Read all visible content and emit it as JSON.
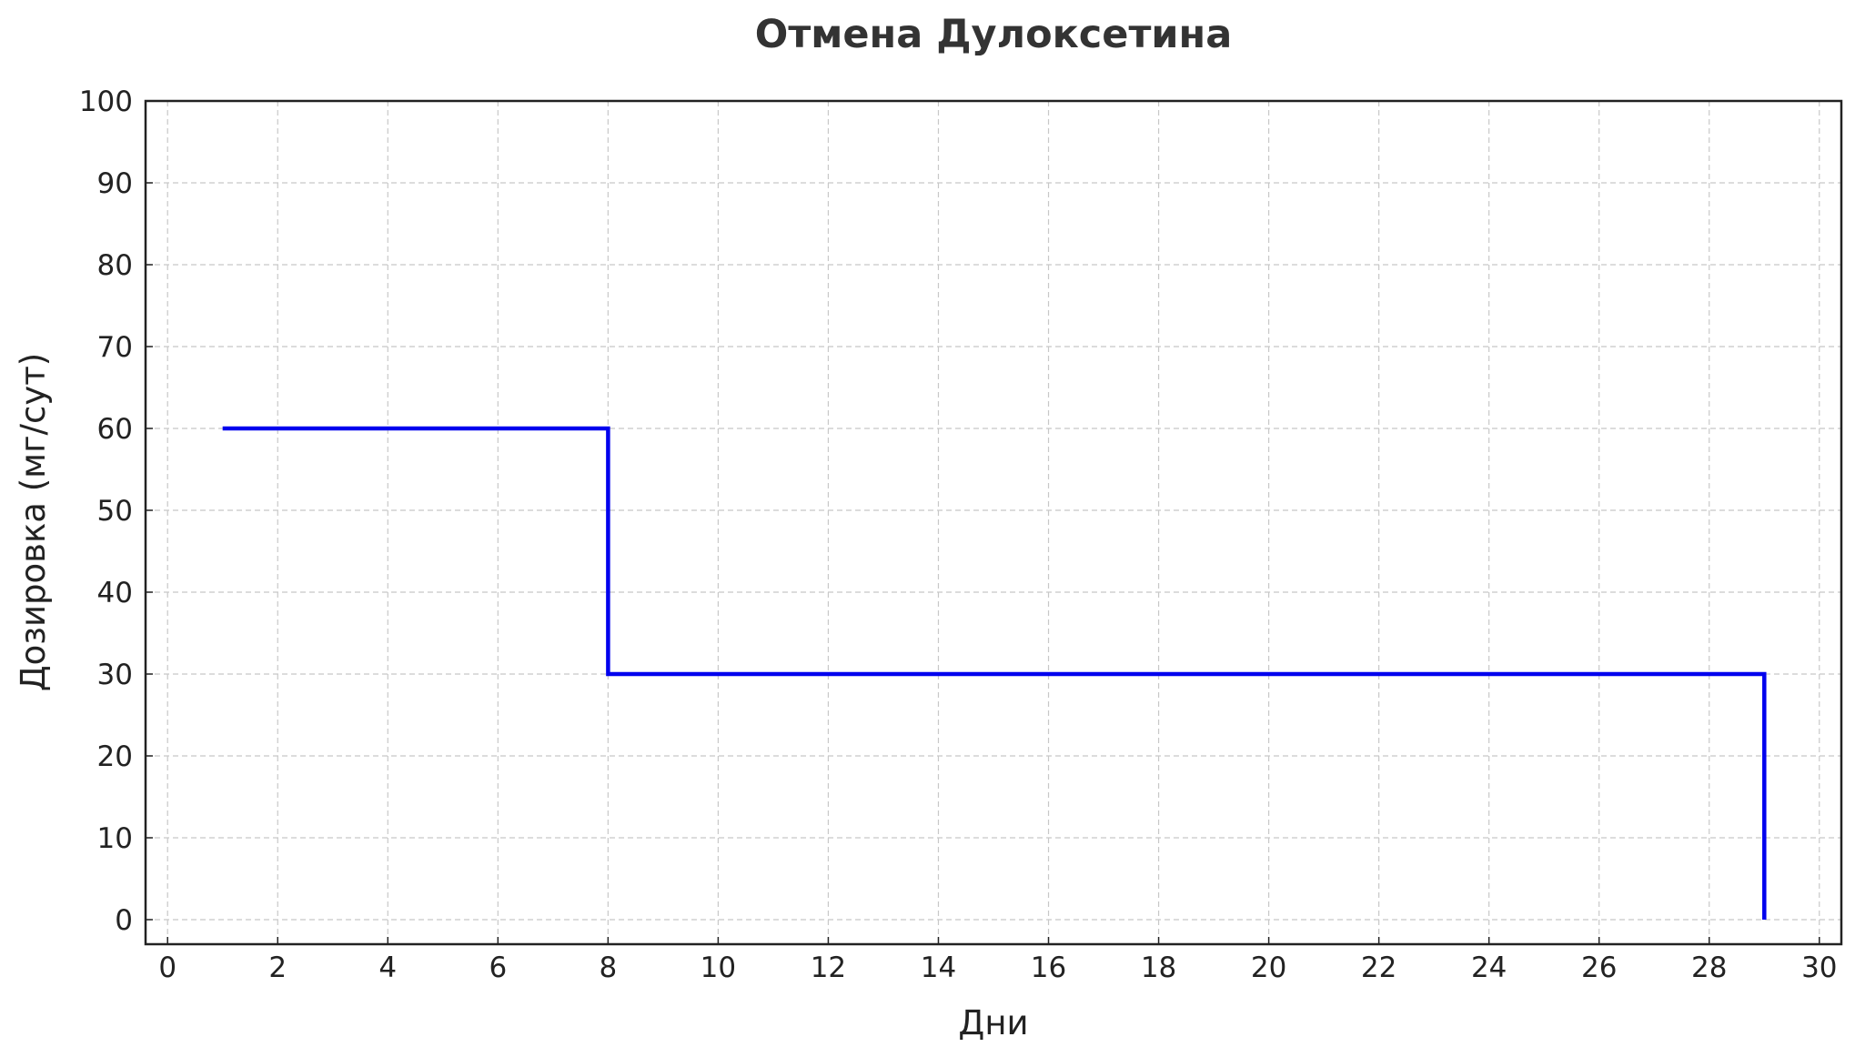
{
  "chart_data": {
    "type": "line",
    "step": true,
    "title": "Отмена Дулоксетина",
    "xlabel": "Дни",
    "ylabel": "Дозировка (мг/сут)",
    "xlim": [
      -0.4,
      30.4
    ],
    "ylim": [
      -3,
      100
    ],
    "xticks": [
      0,
      2,
      4,
      6,
      8,
      10,
      12,
      14,
      16,
      18,
      20,
      22,
      24,
      26,
      28,
      30
    ],
    "yticks": [
      0,
      10,
      20,
      30,
      40,
      50,
      60,
      70,
      80,
      90,
      100
    ],
    "grid": true,
    "series": [
      {
        "color": "#0000ee",
        "points": [
          {
            "x": 1,
            "y": 60
          },
          {
            "x": 8,
            "y": 60
          },
          {
            "x": 8,
            "y": 30
          },
          {
            "x": 29,
            "y": 30
          },
          {
            "x": 29,
            "y": 0
          }
        ]
      }
    ]
  }
}
